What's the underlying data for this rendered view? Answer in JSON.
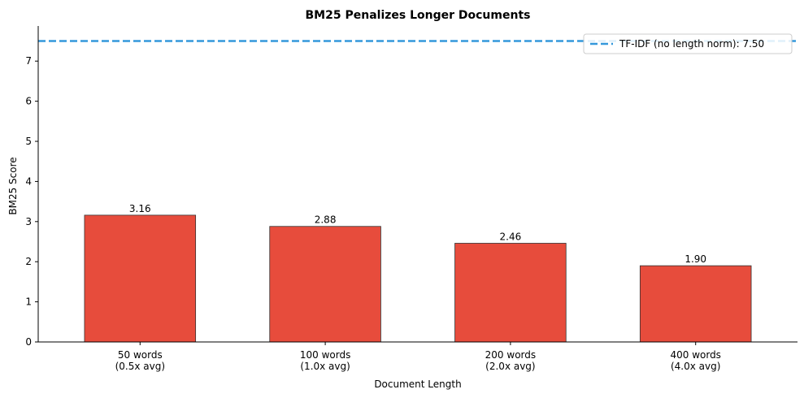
{
  "chart_data": {
    "type": "bar",
    "title": "BM25 Penalizes Longer Documents",
    "xlabel": "Document Length",
    "ylabel": "BM25 Score",
    "categories": [
      [
        "50 words",
        "(0.5x avg)"
      ],
      [
        "100 words",
        "(1.0x avg)"
      ],
      [
        "200 words",
        "(2.0x avg)"
      ],
      [
        "400 words",
        "(4.0x avg)"
      ]
    ],
    "values": [
      3.16,
      2.88,
      2.46,
      1.9
    ],
    "value_labels": [
      "3.16",
      "2.88",
      "2.46",
      "1.90"
    ],
    "ylim": [
      0,
      7.875
    ],
    "yticks": [
      0,
      1,
      2,
      3,
      4,
      5,
      6,
      7
    ],
    "bar_color": "#e74c3c",
    "bar_edge_color": "#333333",
    "reference_line": {
      "value": 7.5,
      "label": "TF-IDF (no length norm): 7.50",
      "color": "#3498db",
      "style": "dashed"
    },
    "legend_position": "top-right",
    "grid": false
  }
}
